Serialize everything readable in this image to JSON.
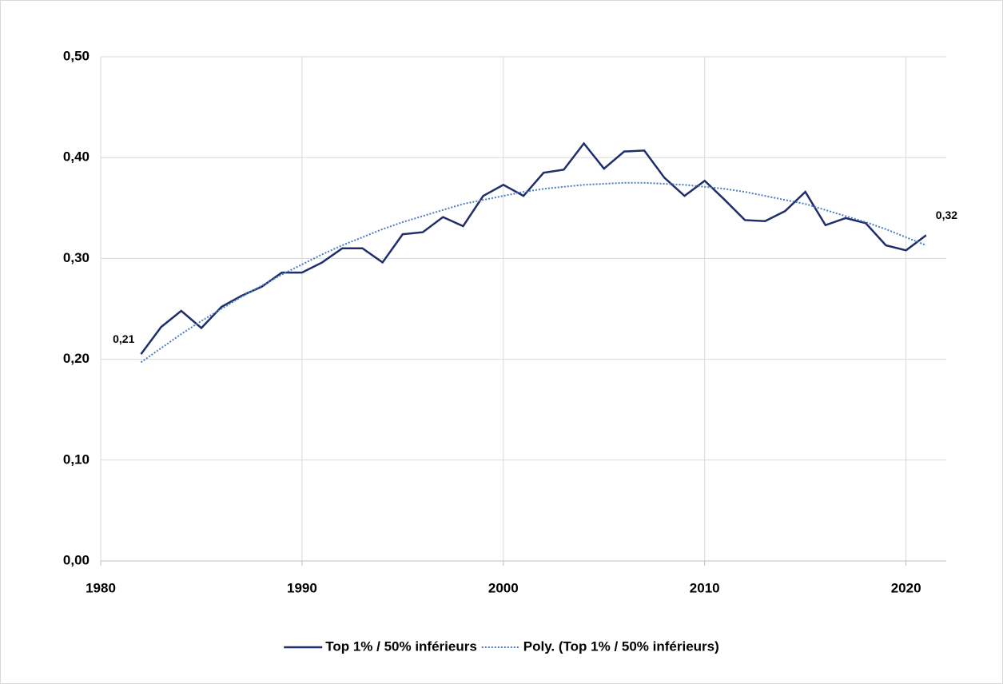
{
  "chart_data": {
    "type": "line",
    "x": [
      1982,
      1983,
      1984,
      1985,
      1986,
      1987,
      1988,
      1989,
      1990,
      1991,
      1992,
      1993,
      1994,
      1995,
      1996,
      1997,
      1998,
      1999,
      2000,
      2001,
      2002,
      2003,
      2004,
      2005,
      2006,
      2007,
      2008,
      2009,
      2010,
      2011,
      2012,
      2013,
      2014,
      2015,
      2016,
      2017,
      2018,
      2019,
      2020,
      2021
    ],
    "series": [
      {
        "name": "Top 1% / 50% inférieurs",
        "color": "#1f2d6b",
        "style": "solid",
        "values": [
          0.205,
          0.232,
          0.248,
          0.231,
          0.252,
          0.263,
          0.272,
          0.286,
          0.286,
          0.296,
          0.31,
          0.31,
          0.296,
          0.324,
          0.326,
          0.341,
          0.332,
          0.362,
          0.373,
          0.362,
          0.385,
          0.388,
          0.414,
          0.389,
          0.406,
          0.407,
          0.38,
          0.362,
          0.377,
          0.358,
          0.338,
          0.337,
          0.347,
          0.366,
          0.333,
          0.34,
          0.335,
          0.313,
          0.308,
          0.323
        ],
        "value_labels": [
          "0,21",
          null,
          null,
          null,
          null,
          null,
          null,
          null,
          null,
          null,
          null,
          null,
          null,
          null,
          null,
          null,
          null,
          null,
          null,
          null,
          null,
          null,
          null,
          null,
          null,
          null,
          null,
          null,
          null,
          null,
          null,
          null,
          null,
          null,
          null,
          null,
          null,
          null,
          null,
          "0,32"
        ]
      },
      {
        "name": "Poly. (Top 1% / 50% inférieurs)",
        "color": "#4a7cc4",
        "style": "dotted",
        "values": [
          0.197,
          0.211,
          0.225,
          0.238,
          0.25,
          0.262,
          0.273,
          0.284,
          0.294,
          0.304,
          0.313,
          0.321,
          0.329,
          0.336,
          0.342,
          0.348,
          0.354,
          0.358,
          0.362,
          0.366,
          0.369,
          0.371,
          0.373,
          0.374,
          0.375,
          0.375,
          0.374,
          0.373,
          0.371,
          0.369,
          0.366,
          0.362,
          0.358,
          0.354,
          0.348,
          0.342,
          0.336,
          0.329,
          0.321,
          0.313
        ]
      }
    ],
    "xlim": [
      1980,
      2022
    ],
    "xticks": [
      1980,
      1990,
      2000,
      2010,
      2020
    ],
    "ylim": [
      0,
      0.5
    ],
    "yticks": [
      {
        "value": 0,
        "label": "0,00"
      },
      {
        "value": 0.1,
        "label": "0,10"
      },
      {
        "value": 0.2,
        "label": "0,20"
      },
      {
        "value": 0.3,
        "label": "0,30"
      },
      {
        "value": 0.4,
        "label": "0,40"
      },
      {
        "value": 0.5,
        "label": "0,50"
      }
    ],
    "grid": true,
    "legend": "bottom"
  }
}
